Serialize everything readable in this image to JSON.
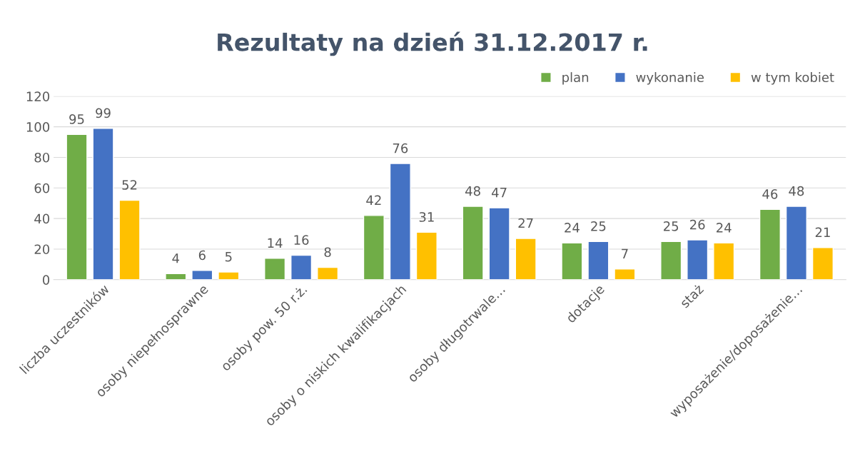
{
  "chart_data": {
    "type": "bar",
    "title": "Rezultaty na dzień 31.12.2017 r.",
    "categories": [
      "liczba uczestników",
      "osoby niepełnosprawne",
      "osoby pow. 50 r.ż.",
      "osoby o niskich kwalifikacjach",
      "osoby długotrwale…",
      "dotacje",
      "staż",
      "wyposażenie/doposażenie…"
    ],
    "series": [
      {
        "name": "plan",
        "color": "#70ad47",
        "values": [
          95,
          4,
          14,
          42,
          48,
          24,
          25,
          46
        ]
      },
      {
        "name": "wykonanie",
        "color": "#4472c4",
        "values": [
          99,
          6,
          16,
          76,
          47,
          25,
          26,
          48
        ]
      },
      {
        "name": "w tym kobiet",
        "color": "#ffc000",
        "values": [
          52,
          5,
          8,
          31,
          27,
          7,
          24,
          21
        ]
      }
    ],
    "ylim": [
      0,
      120
    ],
    "yticks": [
      0,
      20,
      40,
      60,
      80,
      100,
      120
    ],
    "grid": "y",
    "legend": "top right",
    "data_labels": true
  }
}
